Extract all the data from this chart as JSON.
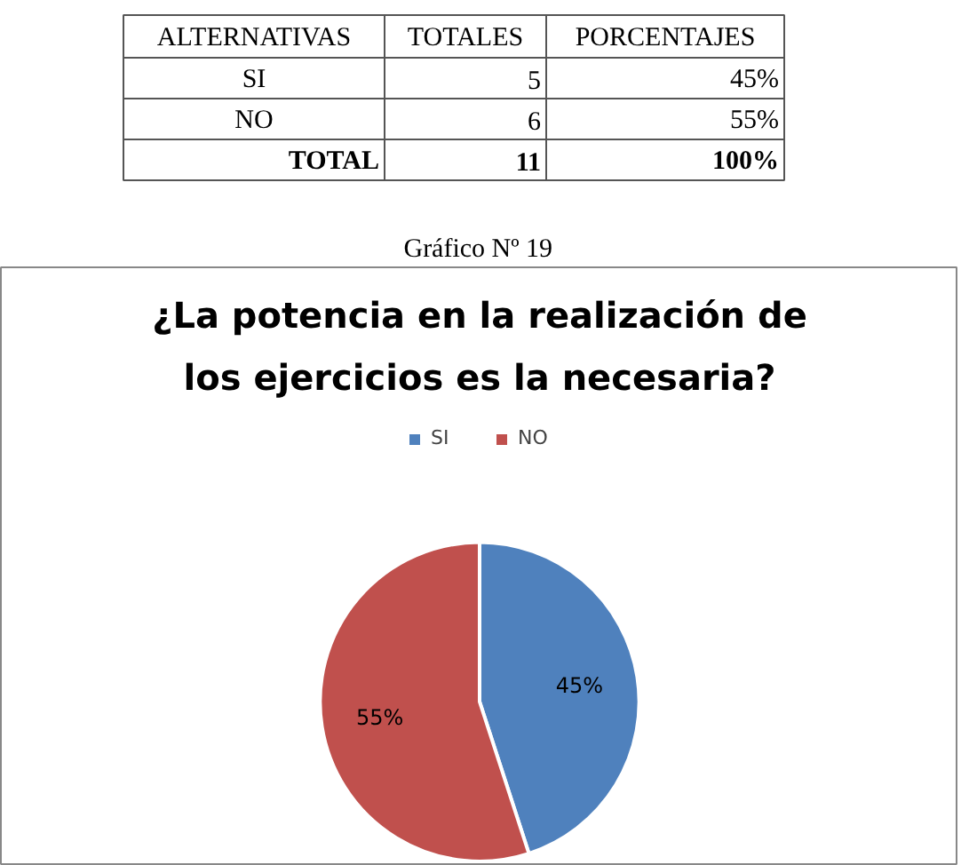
{
  "chart_data": [
    {
      "type": "other",
      "annotations": [
        "ALTERNATIVAS",
        "TOTALES",
        "PORCENTAJES",
        "SI",
        "5",
        "45%",
        "NO",
        "6",
        "55%",
        "TOTAL",
        "11",
        "100%",
        "Gráfico Nº  19"
      ]
    },
    {
      "type": "pie",
      "title": "¿La potencia en la realización de los ejercicios es la necesaria?",
      "categories": [
        "SI",
        "NO"
      ],
      "values": [
        45,
        55
      ],
      "colors": [
        "#4f81bd",
        "#c0504d"
      ],
      "value_labels": [
        "45%",
        "55%"
      ],
      "legend": "top"
    }
  ]
}
